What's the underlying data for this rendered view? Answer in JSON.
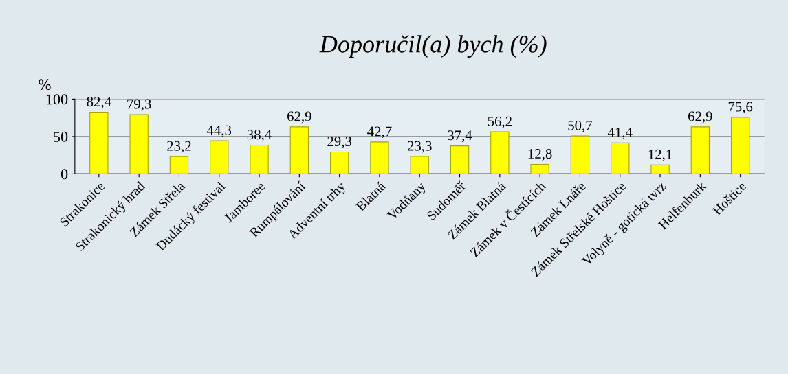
{
  "chart_data": {
    "type": "bar",
    "title": "Doporučil(a) bych (%)",
    "ylabel": "%",
    "categories": [
      "Strakonice",
      "Strakonický hrad",
      "Zámek Střela",
      "Dudácký festival",
      "Jamboree",
      "Rumpálování",
      "Adventní trhy",
      "Blatná",
      "Vodňany",
      "Sudoměř",
      "Zámek Blatná",
      "Zámek v Čestících",
      "Zámek Lnáře",
      "Zámek Střelské Hoštice",
      "Volyně - gotická tvrz",
      "Helfenburk",
      "Hoštice"
    ],
    "values": [
      82.4,
      79.3,
      23.2,
      44.3,
      38.4,
      62.9,
      29.3,
      42.7,
      23.3,
      37.4,
      56.2,
      12.8,
      50.7,
      41.4,
      12.1,
      62.9,
      75.6
    ],
    "value_labels": [
      "82,4",
      "79,3",
      "23,2",
      "44,3",
      "38,4",
      "62,9",
      "29,3",
      "42,7",
      "23,3",
      "37,4",
      "56,2",
      "12,8",
      "50,7",
      "41,4",
      "12,1",
      "62,9",
      "75,6"
    ],
    "color": "#ffff00",
    "ylim": [
      0,
      100
    ],
    "yticks": [
      0,
      50,
      100
    ],
    "grid": "y"
  }
}
